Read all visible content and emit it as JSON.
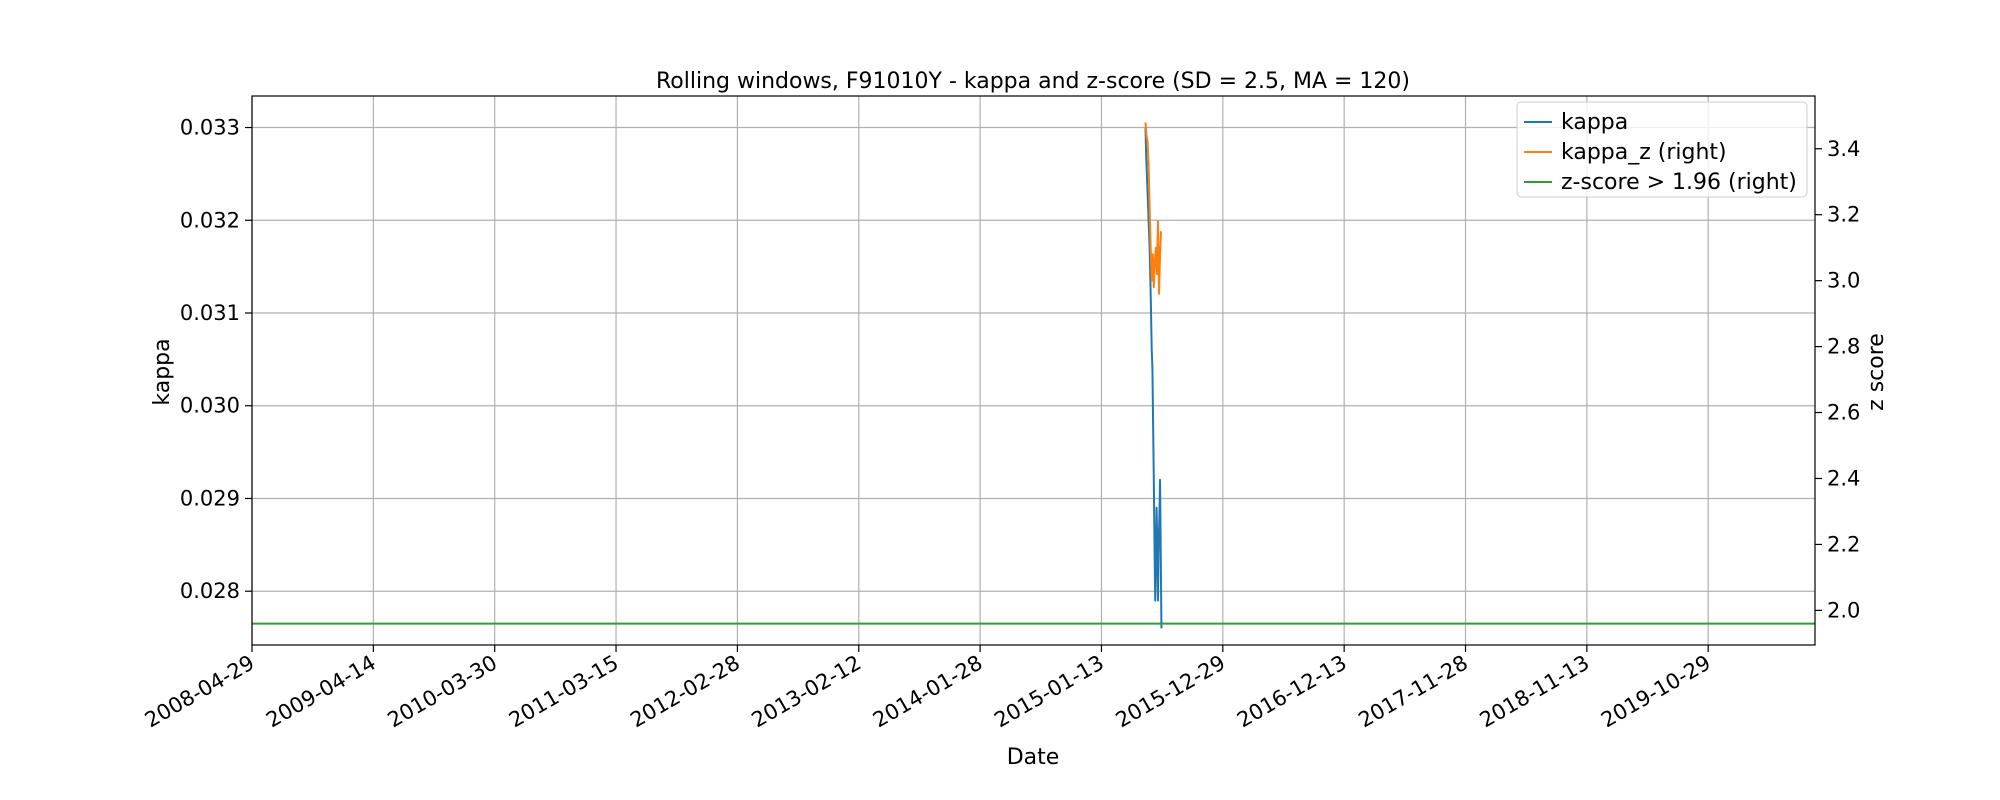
{
  "chart_data": {
    "type": "line",
    "title": "Rolling windows, F91010Y - kappa and z-score (SD = 2.5, MA = 120)",
    "xlabel": "Date",
    "ylabel": "kappa",
    "y2label": "z score",
    "x_ticks": [
      "2008-04-29",
      "2009-04-14",
      "2010-03-30",
      "2011-03-15",
      "2012-02-28",
      "2013-02-12",
      "2014-01-28",
      "2015-01-13",
      "2015-12-29",
      "2016-12-13",
      "2017-11-28",
      "2018-11-13",
      "2019-10-29"
    ],
    "xlim": [
      "2008-04-29",
      "2020-09-01"
    ],
    "ylim": [
      0.02742,
      0.03334
    ],
    "y2lim": [
      1.895,
      3.56
    ],
    "y_ticks": [
      0.028,
      0.029,
      0.03,
      0.031,
      0.032,
      0.033
    ],
    "y_tick_labels": [
      "0.028",
      "0.029",
      "0.030",
      "0.031",
      "0.032",
      "0.033"
    ],
    "y2_ticks": [
      2.0,
      2.2,
      2.4,
      2.6,
      2.8,
      3.0,
      3.2,
      3.4
    ],
    "y2_tick_labels": [
      "2.0",
      "2.2",
      "2.4",
      "2.6",
      "2.8",
      "3.0",
      "3.2",
      "3.4"
    ],
    "grid": true,
    "legend_position": "top-right",
    "series": [
      {
        "name": "kappa",
        "axis": "left",
        "color": "#1f77b4",
        "points": [
          [
            "2015-05-20",
            0.033
          ],
          [
            "2015-05-22",
            0.0327
          ],
          [
            "2015-05-25",
            0.0324
          ],
          [
            "2015-05-28",
            0.0321
          ],
          [
            "2015-06-01",
            0.0317
          ],
          [
            "2015-06-04",
            0.0312
          ],
          [
            "2015-06-07",
            0.0306
          ],
          [
            "2015-06-09",
            0.0304
          ],
          [
            "2015-06-11",
            0.0298
          ],
          [
            "2015-06-13",
            0.0292
          ],
          [
            "2015-06-15",
            0.0285
          ],
          [
            "2015-06-17",
            0.0279
          ],
          [
            "2015-06-19",
            0.0283
          ],
          [
            "2015-06-21",
            0.0289
          ],
          [
            "2015-06-23",
            0.0285
          ],
          [
            "2015-06-25",
            0.0279
          ],
          [
            "2015-06-27",
            0.0285
          ],
          [
            "2015-06-29",
            0.0288
          ],
          [
            "2015-07-01",
            0.0292
          ],
          [
            "2015-07-03",
            0.0284
          ],
          [
            "2015-07-05",
            0.0276
          ]
        ]
      },
      {
        "name": "kappa_z (right)",
        "axis": "right",
        "color": "#ff7f0e",
        "points": [
          [
            "2015-05-20",
            3.48
          ],
          [
            "2015-05-23",
            3.44
          ],
          [
            "2015-05-26",
            3.42
          ],
          [
            "2015-05-29",
            3.35
          ],
          [
            "2015-06-01",
            3.22
          ],
          [
            "2015-06-04",
            3.1
          ],
          [
            "2015-06-07",
            3.0
          ],
          [
            "2015-06-10",
            3.08
          ],
          [
            "2015-06-13",
            2.98
          ],
          [
            "2015-06-16",
            3.06
          ],
          [
            "2015-06-19",
            3.1
          ],
          [
            "2015-06-22",
            3.02
          ],
          [
            "2015-06-25",
            3.18
          ],
          [
            "2015-06-28",
            2.96
          ],
          [
            "2015-07-01",
            3.08
          ],
          [
            "2015-07-04",
            3.15
          ]
        ]
      },
      {
        "name": "z-score > 1.96 (right)",
        "axis": "right",
        "color": "#2ca02c",
        "points": [
          [
            "2008-04-29",
            1.96
          ],
          [
            "2020-09-01",
            1.96
          ]
        ]
      }
    ]
  }
}
